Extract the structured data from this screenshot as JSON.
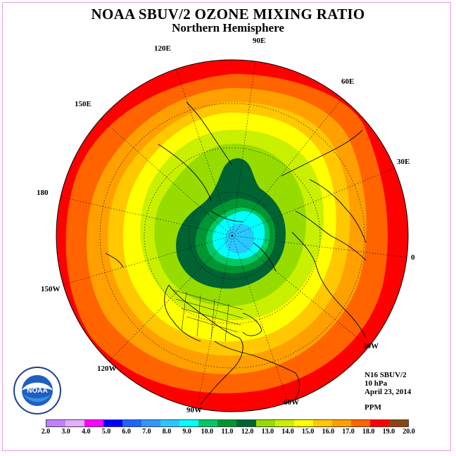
{
  "title": "NOAA SBUV/2 OZONE MIXING RATIO",
  "subtitle": "Northern Hemisphere",
  "longitude_labels": [
    {
      "key": "lon-90e",
      "text": "90E"
    },
    {
      "key": "lon-120e",
      "text": "120E"
    },
    {
      "key": "lon-60e",
      "text": "60E"
    },
    {
      "key": "lon-150e",
      "text": "150E"
    },
    {
      "key": "lon-30e",
      "text": "30E"
    },
    {
      "key": "lon-180",
      "text": "180"
    },
    {
      "key": "lon-0",
      "text": "0"
    },
    {
      "key": "lon-150w",
      "text": "150W"
    },
    {
      "key": "lon-30w",
      "text": "30W"
    },
    {
      "key": "lon-120w",
      "text": "120W"
    },
    {
      "key": "lon-60w",
      "text": "60W"
    },
    {
      "key": "lon-90w",
      "text": "90W"
    }
  ],
  "info": {
    "instrument": "N16 SBUV/2",
    "level": "10 hPa",
    "date": "April 23, 2014",
    "units": "PPM"
  },
  "logo": {
    "text": "NOAA",
    "ring_text": "NATIONAL OCEANIC AND ATMOSPHERIC ADMINISTRATION · U.S. DEPARTMENT OF COMMERCE"
  },
  "colorbar": {
    "ticks": [
      "2.0",
      "3.0",
      "4.0",
      "5.0",
      "6.0",
      "7.0",
      "8.0",
      "9.0",
      "10.0",
      "11.0",
      "12.0",
      "13.0",
      "14.0",
      "15.0",
      "16.0",
      "17.0",
      "18.0",
      "19.0",
      "20.0"
    ],
    "colors": [
      "#c080ff",
      "#e0b0ff",
      "#ff00ff",
      "#0000ff",
      "#1e64ff",
      "#3296ff",
      "#28c8ff",
      "#00ffff",
      "#00c864",
      "#009632",
      "#006432",
      "#96dc00",
      "#c8f000",
      "#ffff00",
      "#ffc800",
      "#ffa000",
      "#ff6400",
      "#ff0000",
      "#8b4513"
    ]
  },
  "map_data": {
    "bands": [
      {
        "ppm": "12-13",
        "color": "#006432"
      },
      {
        "ppm": "11-12",
        "color": "#009632"
      },
      {
        "ppm": "10-11",
        "color": "#00c864"
      },
      {
        "ppm": "9-10",
        "color": "#00ffff"
      },
      {
        "ppm": "8-9",
        "color": "#28c8ff"
      }
    ]
  }
}
